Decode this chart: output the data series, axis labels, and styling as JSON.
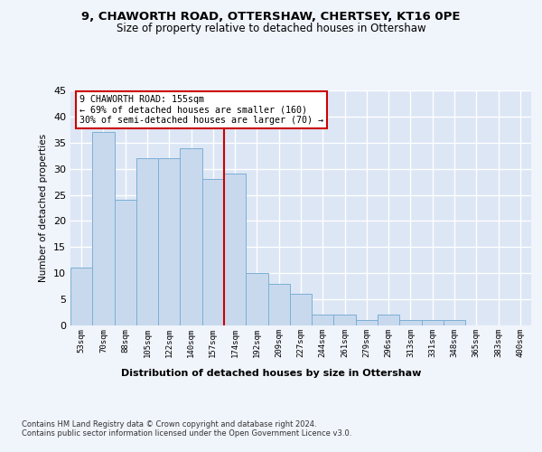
{
  "title": "9, CHAWORTH ROAD, OTTERSHAW, CHERTSEY, KT16 0PE",
  "subtitle": "Size of property relative to detached houses in Ottershaw",
  "xlabel": "Distribution of detached houses by size in Ottershaw",
  "ylabel": "Number of detached properties",
  "bar_labels": [
    "53sqm",
    "70sqm",
    "88sqm",
    "105sqm",
    "122sqm",
    "140sqm",
    "157sqm",
    "174sqm",
    "192sqm",
    "209sqm",
    "227sqm",
    "244sqm",
    "261sqm",
    "279sqm",
    "296sqm",
    "313sqm",
    "331sqm",
    "348sqm",
    "365sqm",
    "383sqm",
    "400sqm"
  ],
  "bar_values": [
    11,
    37,
    24,
    32,
    32,
    34,
    28,
    29,
    10,
    8,
    6,
    2,
    2,
    1,
    2,
    1,
    1,
    1,
    0,
    0,
    0
  ],
  "bar_color": "#c8d9ee",
  "bar_edge_color": "#7bafd4",
  "property_line_index": 6,
  "property_line_color": "#cc0000",
  "annotation_text": "9 CHAWORTH ROAD: 155sqm\n← 69% of detached houses are smaller (160)\n30% of semi-detached houses are larger (70) →",
  "annotation_box_facecolor": "#ffffff",
  "annotation_box_edgecolor": "#cc0000",
  "ylim": [
    0,
    45
  ],
  "yticks": [
    0,
    5,
    10,
    15,
    20,
    25,
    30,
    35,
    40,
    45
  ],
  "background_color": "#dce6f5",
  "plot_bg_color": "#dce6f5",
  "grid_color": "#ffffff",
  "fig_bg_color": "#f0f4fb",
  "footer_line1": "Contains HM Land Registry data © Crown copyright and database right 2024.",
  "footer_line2": "Contains public sector information licensed under the Open Government Licence v3.0."
}
